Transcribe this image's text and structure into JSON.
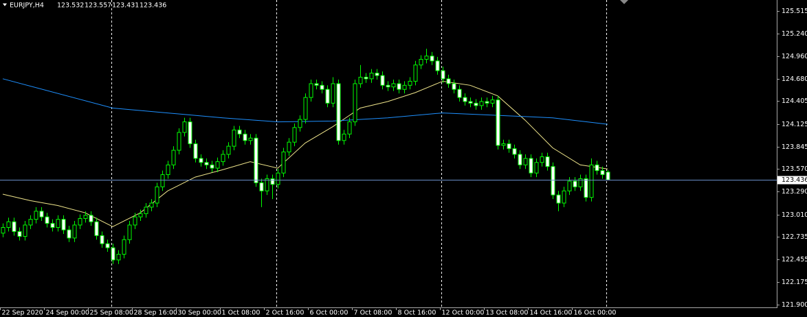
{
  "chart_data": {
    "type": "candlestick",
    "title": "EURJPY,H4",
    "open": [
      122.78,
      122.85,
      122.92,
      122.8,
      122.74,
      122.88,
      122.95,
      123.05,
      122.98,
      122.9,
      122.85,
      122.95,
      122.82,
      122.72,
      122.88,
      122.96,
      123.0,
      122.92,
      122.75,
      122.65,
      122.6,
      122.45,
      122.52,
      122.7,
      122.88,
      122.98,
      123.02,
      123.1,
      123.15,
      123.35,
      123.5,
      123.62,
      123.8,
      124.02,
      124.15,
      123.88,
      123.7,
      123.65,
      123.62,
      123.58,
      123.66,
      123.75,
      123.85,
      124.05,
      124.0,
      123.92,
      123.95,
      123.4,
      123.3,
      123.45,
      123.38,
      123.52,
      123.78,
      123.9,
      124.08,
      124.18,
      124.45,
      124.62,
      124.6,
      124.55,
      124.38,
      124.62,
      123.92,
      124.0,
      124.15,
      124.62,
      124.7,
      124.68,
      124.75,
      124.72,
      124.6,
      124.58,
      124.62,
      124.55,
      124.6,
      124.65,
      124.85,
      124.92,
      124.96,
      124.9,
      124.78,
      124.68,
      124.62,
      124.55,
      124.45,
      124.4,
      124.38,
      124.35,
      124.4,
      124.38,
      124.42,
      123.86,
      123.88,
      123.82,
      123.75,
      123.62,
      123.7,
      123.52,
      123.65,
      123.72,
      123.6,
      123.25,
      123.15,
      123.3,
      123.42,
      123.35,
      123.45,
      123.22,
      123.62,
      123.55,
      123.532
    ],
    "high": [
      122.9,
      122.97,
      122.97,
      122.85,
      122.93,
      123.0,
      123.1,
      123.1,
      123.03,
      122.95,
      123.0,
      123.0,
      122.87,
      122.93,
      123.01,
      123.05,
      123.05,
      122.97,
      122.8,
      122.7,
      122.65,
      122.57,
      122.75,
      122.93,
      123.03,
      123.07,
      123.15,
      123.2,
      123.4,
      123.55,
      123.67,
      123.85,
      124.07,
      124.2,
      124.2,
      123.93,
      123.75,
      123.7,
      123.67,
      123.71,
      123.8,
      123.9,
      124.1,
      124.1,
      124.05,
      124.0,
      124.0,
      123.45,
      123.5,
      123.5,
      123.57,
      123.83,
      123.95,
      124.13,
      124.23,
      124.5,
      124.67,
      124.67,
      124.65,
      124.6,
      124.7,
      124.67,
      124.05,
      124.2,
      124.67,
      124.85,
      124.75,
      124.8,
      124.8,
      124.77,
      124.65,
      124.67,
      124.67,
      124.65,
      124.7,
      124.9,
      124.97,
      125.05,
      125.01,
      124.95,
      124.83,
      124.73,
      124.67,
      124.6,
      124.5,
      124.45,
      124.43,
      124.45,
      124.45,
      124.47,
      124.47,
      123.93,
      123.93,
      123.87,
      123.8,
      123.75,
      123.75,
      123.7,
      123.77,
      123.77,
      123.65,
      123.3,
      123.35,
      123.47,
      123.47,
      123.5,
      123.5,
      123.7,
      123.67,
      123.6,
      123.557
    ],
    "low": [
      122.73,
      122.8,
      122.75,
      122.69,
      122.69,
      122.83,
      122.9,
      122.93,
      122.85,
      122.8,
      122.8,
      122.77,
      122.67,
      122.67,
      122.83,
      122.91,
      122.87,
      122.7,
      122.6,
      122.55,
      122.4,
      122.4,
      122.47,
      122.65,
      122.83,
      122.93,
      122.97,
      123.05,
      123.1,
      123.3,
      123.45,
      123.57,
      123.75,
      123.97,
      123.83,
      123.65,
      123.6,
      123.57,
      123.53,
      123.53,
      123.61,
      123.7,
      123.8,
      123.95,
      123.87,
      123.87,
      123.35,
      123.1,
      123.25,
      123.2,
      123.33,
      123.47,
      123.73,
      123.85,
      124.03,
      124.13,
      124.4,
      124.55,
      124.5,
      124.33,
      124.33,
      123.87,
      123.87,
      123.95,
      124.1,
      124.57,
      124.63,
      124.63,
      124.67,
      124.55,
      124.53,
      124.53,
      124.5,
      124.5,
      124.55,
      124.6,
      124.8,
      124.87,
      124.85,
      124.73,
      124.63,
      124.57,
      124.5,
      124.4,
      124.35,
      124.33,
      124.3,
      124.3,
      124.33,
      124.33,
      123.81,
      123.81,
      123.77,
      123.7,
      123.57,
      123.57,
      123.47,
      123.47,
      123.6,
      123.55,
      123.2,
      123.05,
      123.1,
      123.25,
      123.3,
      123.3,
      123.17,
      123.17,
      123.5,
      123.45,
      123.431
    ],
    "close": [
      122.85,
      122.92,
      122.8,
      122.74,
      122.88,
      122.95,
      123.05,
      122.98,
      122.9,
      122.85,
      122.95,
      122.82,
      122.72,
      122.88,
      122.96,
      123.0,
      122.92,
      122.75,
      122.65,
      122.6,
      122.45,
      122.52,
      122.7,
      122.88,
      122.98,
      123.02,
      123.1,
      123.15,
      123.35,
      123.5,
      123.62,
      123.8,
      124.02,
      124.15,
      123.88,
      123.7,
      123.65,
      123.62,
      123.58,
      123.66,
      123.75,
      123.85,
      124.05,
      124.0,
      123.92,
      123.95,
      123.4,
      123.3,
      123.45,
      123.38,
      123.52,
      123.78,
      123.9,
      124.08,
      124.18,
      124.45,
      124.62,
      124.6,
      124.55,
      124.38,
      124.62,
      123.92,
      124.0,
      124.15,
      124.62,
      124.7,
      124.68,
      124.75,
      124.72,
      124.6,
      124.58,
      124.62,
      124.55,
      124.6,
      124.65,
      124.85,
      124.92,
      124.96,
      124.9,
      124.78,
      124.68,
      124.62,
      124.55,
      124.45,
      124.4,
      124.38,
      124.35,
      124.4,
      124.38,
      124.42,
      123.86,
      123.88,
      123.82,
      123.75,
      123.62,
      123.7,
      123.52,
      123.65,
      123.72,
      123.6,
      123.25,
      123.15,
      123.3,
      123.42,
      123.35,
      123.45,
      123.22,
      123.62,
      123.55,
      123.5,
      123.436
    ],
    "up_color": "#000000",
    "down_color": "#ffffff",
    "wick_color": "#00ff00",
    "lines": [
      {
        "color": "#f0e68c",
        "x": [
          0,
          5,
          10,
          15,
          20,
          25,
          30,
          35,
          40,
          45,
          50,
          55,
          60,
          65,
          70,
          75,
          80,
          85,
          90,
          95,
          100,
          105,
          110
        ],
        "values": [
          123.26,
          123.18,
          123.12,
          123.03,
          122.86,
          123.03,
          123.3,
          123.47,
          123.56,
          123.66,
          123.58,
          123.89,
          124.09,
          124.32,
          124.4,
          124.51,
          124.65,
          124.6,
          124.47,
          124.17,
          123.83,
          123.62,
          123.57
        ]
      },
      {
        "color": "#1e90ff",
        "x": [
          0,
          20,
          40,
          50,
          60,
          70,
          80,
          90,
          100,
          110
        ],
        "values": [
          124.68,
          124.32,
          124.2,
          124.15,
          124.16,
          124.2,
          124.26,
          124.23,
          124.2,
          124.12
        ]
      }
    ],
    "current_line_color": "#6a8fc8",
    "xlim": [
      -0.5,
      140.75
    ],
    "ylim": [
      121.866,
      125.65
    ],
    "xticks": [
      {
        "value": 0,
        "label": "22 Sep 2020"
      },
      {
        "value": 8,
        "label": "24 Sep 00:00"
      },
      {
        "value": 16,
        "label": "25 Sep 08:00"
      },
      {
        "value": 24,
        "label": "28 Sep 16:00"
      },
      {
        "value": 32,
        "label": "30 Sep 00:00"
      },
      {
        "value": 40,
        "label": "1 Oct 08:00"
      },
      {
        "value": 48,
        "label": "2 Oct 16:00"
      },
      {
        "value": 56,
        "label": "6 Oct 00:00"
      },
      {
        "value": 64,
        "label": "7 Oct 08:00"
      },
      {
        "value": 72,
        "label": "8 Oct 16:00"
      },
      {
        "value": 80,
        "label": "12 Oct 00:00"
      },
      {
        "value": 88,
        "label": "13 Oct 08:00"
      },
      {
        "value": 96,
        "label": "14 Oct 16:00"
      },
      {
        "value": 104,
        "label": "16 Oct 00:00"
      }
    ],
    "yticks": [
      125.515,
      {
        "value": 125.24,
        "label": "125.240"
      },
      {
        "value": 124.96,
        "label": "124.960"
      },
      {
        "value": 124.68,
        "label": "124.680"
      },
      124.405,
      124.125,
      123.845,
      {
        "value": 123.57,
        "label": "123.570"
      },
      {
        "value": 123.29,
        "label": "123.290"
      },
      {
        "value": 123.01,
        "label": "123.010"
      },
      122.735,
      122.455,
      122.175,
      {
        "value": 121.9,
        "label": "121.900"
      }
    ]
  }
}
